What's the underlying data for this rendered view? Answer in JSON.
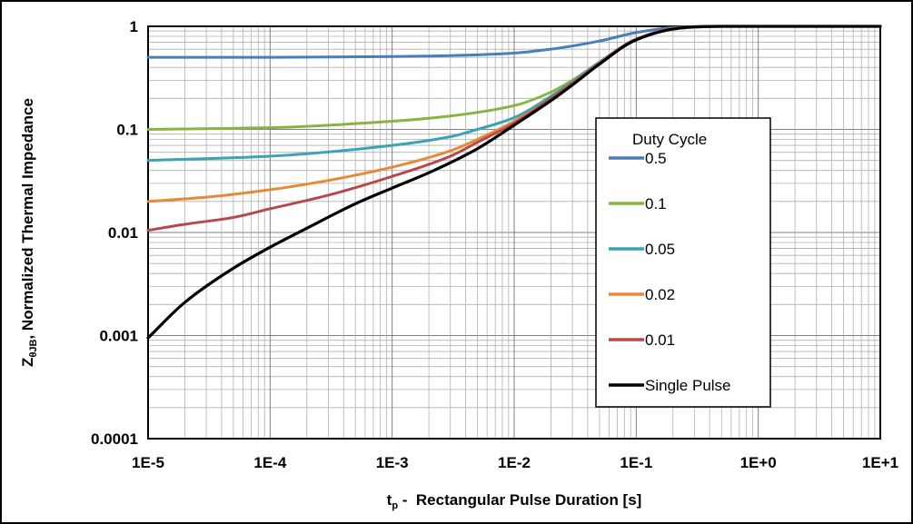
{
  "chart_data": {
    "type": "line",
    "xlabel_main": "t",
    "xlabel_sub": "p",
    "xlabel_rest": " -  Rectangular Pulse Duration [s]",
    "ylabel_main": "Z",
    "ylabel_sub": "θJB",
    "ylabel_rest": ", Normalized Thermal Impedance",
    "x_scale": "log",
    "y_scale": "log",
    "xlim": [
      1e-05,
      10
    ],
    "ylim": [
      0.0001,
      1
    ],
    "grid": true,
    "x_ticks": [
      {
        "value": 1e-05,
        "label": "1E-5"
      },
      {
        "value": 0.0001,
        "label": "1E-4"
      },
      {
        "value": 0.001,
        "label": "1E-3"
      },
      {
        "value": 0.01,
        "label": "1E-2"
      },
      {
        "value": 0.1,
        "label": "1E-1"
      },
      {
        "value": 1,
        "label": "1E+0"
      },
      {
        "value": 10,
        "label": "1E+1"
      }
    ],
    "y_ticks": [
      {
        "value": 1,
        "label": "1"
      },
      {
        "value": 0.1,
        "label": "0.1"
      },
      {
        "value": 0.01,
        "label": "0.01"
      },
      {
        "value": 0.001,
        "label": "0.001"
      },
      {
        "value": 0.0001,
        "label": "0.0001"
      }
    ],
    "legend": {
      "title": "Duty Cycle",
      "placement": "right"
    },
    "series": [
      {
        "name": "0.5",
        "color": "#4a7ebb",
        "x": [
          1e-05,
          0.0001,
          0.001,
          0.003,
          0.01,
          0.02,
          0.05,
          0.1,
          0.2,
          0.5,
          1,
          10
        ],
        "y": [
          0.5,
          0.5,
          0.51,
          0.52,
          0.55,
          0.6,
          0.72,
          0.87,
          0.97,
          1,
          1,
          1
        ]
      },
      {
        "name": "0.1",
        "color": "#8cb33f",
        "x": [
          1e-05,
          0.0001,
          0.001,
          0.003,
          0.01,
          0.02,
          0.03,
          0.05,
          0.1,
          0.2,
          0.5,
          1,
          10
        ],
        "y": [
          0.1,
          0.104,
          0.12,
          0.135,
          0.17,
          0.23,
          0.3,
          0.45,
          0.75,
          0.95,
          1,
          1,
          1
        ]
      },
      {
        "name": "0.05",
        "color": "#3ba3b5",
        "x": [
          1e-05,
          0.0001,
          0.001,
          0.003,
          0.005,
          0.01,
          0.02,
          0.03,
          0.05,
          0.1,
          0.2,
          0.5,
          1,
          10
        ],
        "y": [
          0.05,
          0.055,
          0.07,
          0.085,
          0.1,
          0.13,
          0.21,
          0.29,
          0.45,
          0.75,
          0.95,
          1,
          1,
          1
        ]
      },
      {
        "name": "0.02",
        "color": "#e8883b",
        "x": [
          1e-05,
          3e-05,
          0.0001,
          0.0003,
          0.001,
          0.003,
          0.005,
          0.01,
          0.02,
          0.03,
          0.05,
          0.1,
          0.2,
          0.5,
          1,
          10
        ],
        "y": [
          0.02,
          0.022,
          0.026,
          0.032,
          0.043,
          0.062,
          0.08,
          0.12,
          0.2,
          0.28,
          0.44,
          0.75,
          0.95,
          1,
          1,
          1
        ]
      },
      {
        "name": "0.01",
        "color": "#b8484a",
        "x": [
          1e-05,
          2e-05,
          5e-05,
          0.0001,
          0.0003,
          0.001,
          0.003,
          0.005,
          0.01,
          0.02,
          0.03,
          0.05,
          0.1,
          0.2,
          0.5,
          1,
          10
        ],
        "y": [
          0.0105,
          0.012,
          0.014,
          0.017,
          0.023,
          0.035,
          0.055,
          0.075,
          0.115,
          0.2,
          0.28,
          0.44,
          0.75,
          0.95,
          1,
          1,
          1
        ]
      },
      {
        "name": "Single Pulse",
        "color": "#000000",
        "x": [
          1e-05,
          2e-05,
          5e-05,
          0.0001,
          0.0002,
          0.0005,
          0.001,
          0.002,
          0.005,
          0.01,
          0.02,
          0.03,
          0.05,
          0.1,
          0.2,
          0.3,
          0.5,
          1,
          10
        ],
        "y": [
          0.00095,
          0.0021,
          0.0045,
          0.0072,
          0.011,
          0.019,
          0.027,
          0.038,
          0.065,
          0.11,
          0.19,
          0.27,
          0.43,
          0.74,
          0.94,
          0.99,
          1,
          1,
          1
        ]
      }
    ]
  }
}
